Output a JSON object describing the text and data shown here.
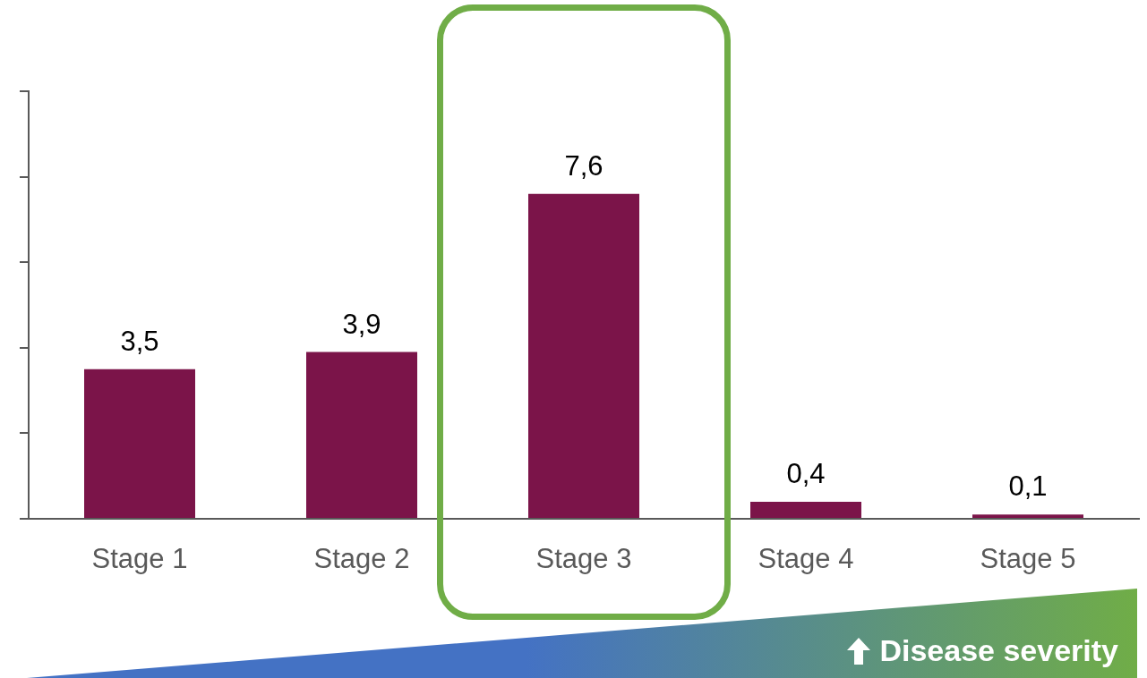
{
  "chart_data": {
    "type": "bar",
    "categories": [
      "Stage 1",
      "Stage 2",
      "Stage 3",
      "Stage 4",
      "Stage 5"
    ],
    "values": [
      3.5,
      3.9,
      7.6,
      0.4,
      0.1
    ],
    "value_labels": [
      "3,5",
      "3,9",
      "7,6",
      "0,4",
      "0,1"
    ],
    "color": "#7b1449",
    "ylim": [
      0,
      10
    ],
    "yticks": [
      {
        "value": 0,
        "label": null
      },
      {
        "value": 2,
        "label": null
      },
      {
        "value": 4,
        "label": null
      },
      {
        "value": 6,
        "label": null
      },
      {
        "value": 8,
        "label": null
      },
      {
        "value": 10,
        "label": null
      }
    ],
    "tick_labels": "x",
    "grid": false,
    "legend": false,
    "annotations": [
      "Disease severity"
    ]
  }
}
